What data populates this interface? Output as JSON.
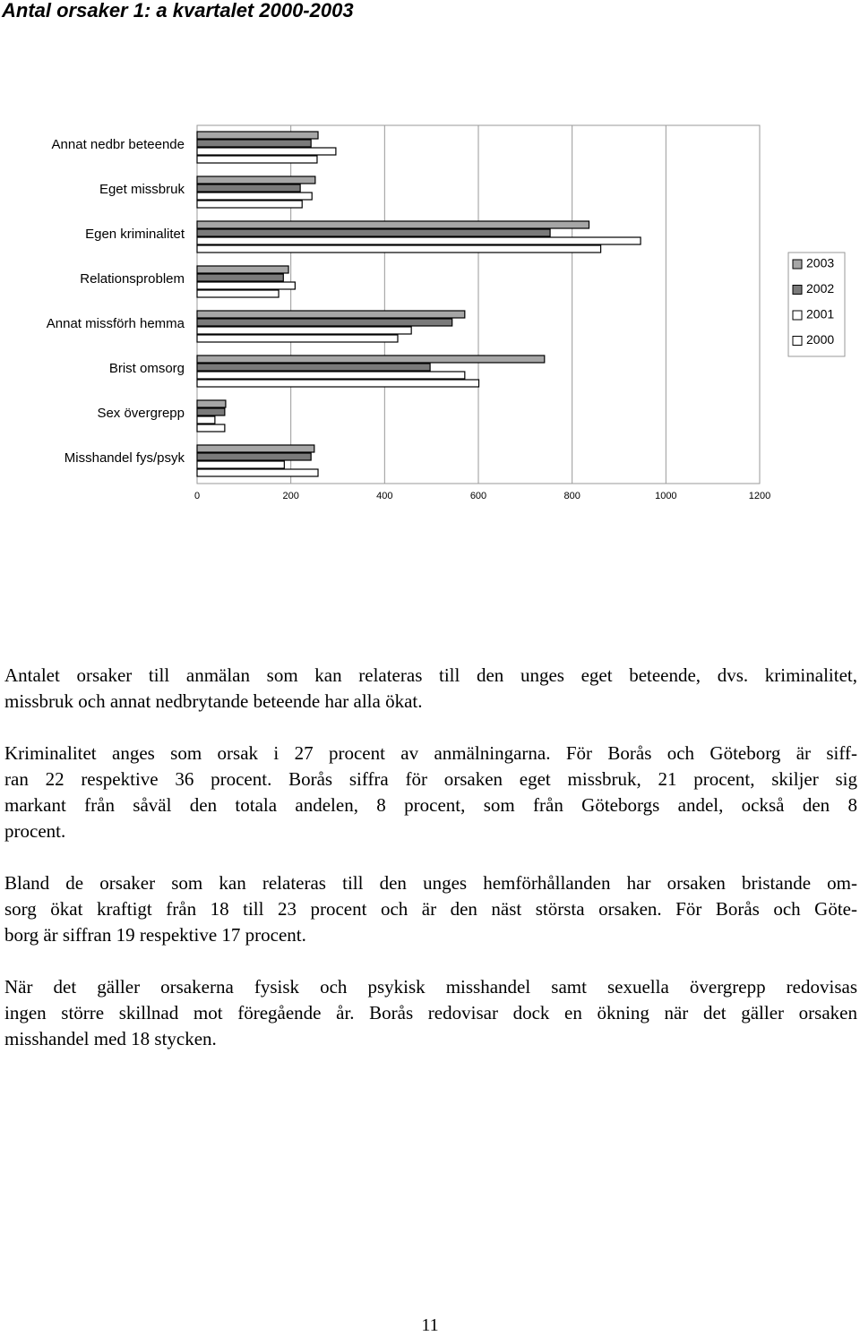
{
  "chart_data": {
    "type": "hbar",
    "title": "Antal orsaker 1: a kvartalet 2000-2003",
    "categories": [
      "Annat nedbr beteende",
      "Eget missbruk",
      "Egen kriminalitet",
      "Relationsproblem",
      "Annat missförh hemma",
      "Brist omsorg",
      "Sex övergrepp",
      "Misshandel fys/psyk"
    ],
    "series": [
      {
        "name": "2003",
        "color": "#a6a6a6",
        "values": [
          258,
          252,
          836,
          195,
          571,
          741,
          61,
          250
        ]
      },
      {
        "name": "2002",
        "color": "#7a7a7a",
        "values": [
          243,
          220,
          753,
          184,
          544,
          497,
          59,
          243
        ]
      },
      {
        "name": "2001",
        "color": "#ffffff",
        "values": [
          296,
          245,
          946,
          209,
          457,
          571,
          38,
          186
        ]
      },
      {
        "name": "2000",
        "color": "#ffffff",
        "values": [
          256,
          224,
          861,
          174,
          428,
          601,
          59,
          258
        ]
      }
    ],
    "xlim": [
      0,
      1200
    ],
    "xticks": [
      0,
      200,
      400,
      600,
      800,
      1000,
      1200
    ],
    "grid": true,
    "legend": "right"
  },
  "paragraphs": [
    [
      "Antalet orsaker till anmälan som kan relateras till den unges eget beteende, dvs. kriminalitet,",
      "missbruk och annat nedbrytande beteende har alla ökat."
    ],
    [
      "Kriminalitet anges som orsak i 27 procent av anmälningarna. För Borås och Göteborg är siff-",
      "ran 22 respektive 36 procent. Borås siffra för orsaken eget missbruk, 21 procent, skiljer sig",
      "markant från såväl den totala andelen, 8 procent, som från Göteborgs andel, också den 8",
      "procent."
    ],
    [
      "Bland de orsaker som kan relateras till den unges hemförhållanden har orsaken bristande om-",
      "sorg ökat kraftigt från 18 till 23 procent och är den näst största orsaken. För Borås och Göte-",
      "borg är siffran 19 respektive 17 procent."
    ],
    [
      "När det gäller orsakerna fysisk och psykisk misshandel samt sexuella övergrepp redovisas",
      "ingen större skillnad mot föregående år. Borås redovisar dock en ökning när det gäller orsaken",
      "misshandel med 18 stycken."
    ]
  ],
  "page_number": "11"
}
